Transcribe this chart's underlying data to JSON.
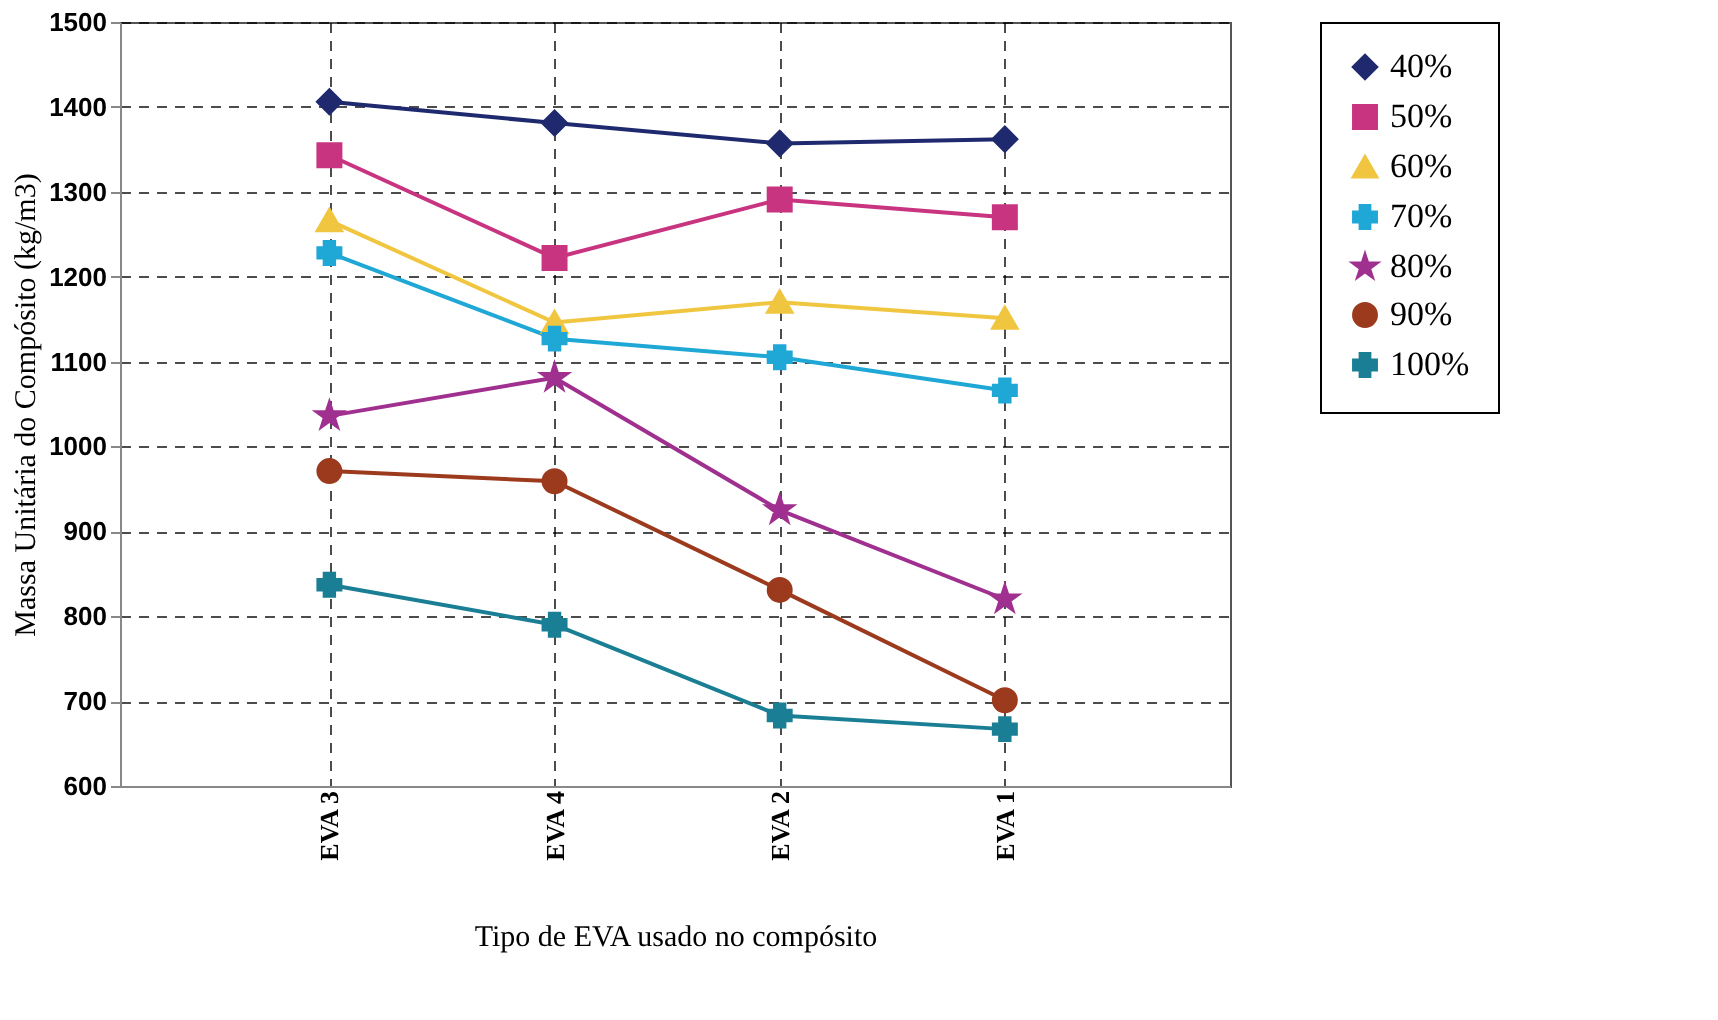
{
  "chart_data": {
    "type": "line",
    "xlabel": "Tipo de EVA usado no compósito",
    "ylabel": "Massa Unitária do Compósito (kg/m3)",
    "categories": [
      "EVA 3",
      "EVA 4",
      "EVA 2",
      "EVA 1"
    ],
    "series": [
      {
        "name": "40%",
        "color": "#1f2a6e",
        "marker": "diamond",
        "values": [
          1406,
          1381,
          1357,
          1362
        ]
      },
      {
        "name": "50%",
        "color": "#c8347f",
        "marker": "square",
        "values": [
          1343,
          1222,
          1291,
          1270
        ]
      },
      {
        "name": "60%",
        "color": "#f0c640",
        "marker": "triangle",
        "values": [
          1266,
          1146,
          1170,
          1151
        ]
      },
      {
        "name": "70%",
        "color": "#1fa8d6",
        "marker": "cross",
        "values": [
          1228,
          1127,
          1105,
          1066
        ]
      },
      {
        "name": "80%",
        "color": "#a0308f",
        "marker": "star",
        "values": [
          1036,
          1081,
          925,
          820
        ]
      },
      {
        "name": "90%",
        "color": "#9c3a1e",
        "marker": "circle",
        "values": [
          971,
          959,
          831,
          701
        ]
      },
      {
        "name": "100%",
        "color": "#1a7f95",
        "marker": "cross",
        "values": [
          837,
          790,
          683,
          667
        ]
      }
    ],
    "ylim": [
      600,
      1500
    ],
    "yticks": [
      600,
      700,
      800,
      900,
      1000,
      1100,
      1200,
      1300,
      1400,
      1500
    ],
    "grid": true,
    "legend": "right"
  }
}
